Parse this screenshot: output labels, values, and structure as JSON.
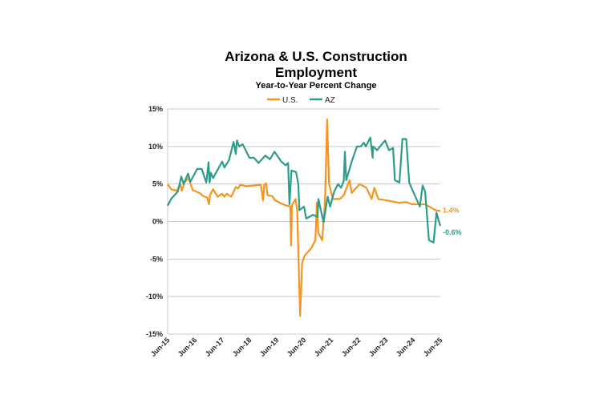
{
  "chart_data": {
    "type": "line",
    "title": [
      "Arizona & U.S. Construction",
      "Employment"
    ],
    "subtitle": "Year-to-Year Percent Change",
    "xlabel": "",
    "ylabel": "",
    "x_unit": "months since Jun-15",
    "xlim": [
      0,
      120
    ],
    "ylim": [
      -15,
      15
    ],
    "y_ticks": [
      15,
      10,
      5,
      0,
      -5,
      -10,
      -15
    ],
    "y_tick_labels": [
      "15%",
      "10%",
      "5%",
      "0%",
      "-5%",
      "-10%",
      "-15%"
    ],
    "x_ticks": [
      0,
      12,
      24,
      36,
      48,
      60,
      72,
      84,
      96,
      108,
      120
    ],
    "x_tick_labels": [
      "Jun-15",
      "Jun-16",
      "Jun-17",
      "Jun-18",
      "Jun-19",
      "Jun-20",
      "Jun-21",
      "Jun-22",
      "Jun-23",
      "Jun-24",
      "Jun-25"
    ],
    "grid": "horizontal",
    "legend_position": "top",
    "series": [
      {
        "name": "U.S.",
        "color": "#F7941D",
        "end_label": "1.4%",
        "points": [
          [
            0,
            5.0
          ],
          [
            1.5,
            4.3
          ],
          [
            4,
            4.1
          ],
          [
            5.6,
            5.0
          ],
          [
            6.2,
            4.1
          ],
          [
            7.4,
            5.2
          ],
          [
            9.2,
            5.8
          ],
          [
            11,
            4.2
          ],
          [
            14,
            3.8
          ],
          [
            15.6,
            3.4
          ],
          [
            17.4,
            3.2
          ],
          [
            18.2,
            2.3
          ],
          [
            18.6,
            3.5
          ],
          [
            20,
            4.3
          ],
          [
            22,
            3.3
          ],
          [
            24,
            3.7
          ],
          [
            25,
            3.3
          ],
          [
            26,
            3.7
          ],
          [
            28,
            3.3
          ],
          [
            30,
            4.6
          ],
          [
            31,
            4.4
          ],
          [
            32,
            4.9
          ],
          [
            34.5,
            4.7
          ],
          [
            38,
            4.8
          ],
          [
            41,
            4.9
          ],
          [
            42,
            2.8
          ],
          [
            42.5,
            4.9
          ],
          [
            43.3,
            5.1
          ],
          [
            44,
            3.5
          ],
          [
            46,
            3.4
          ],
          [
            47.4,
            2.8
          ],
          [
            51.5,
            2.2
          ],
          [
            54,
            2.0
          ],
          [
            54.3,
            -3.2
          ],
          [
            54.7,
            2.2
          ],
          [
            56.3,
            3.0
          ],
          [
            57,
            1.5
          ],
          [
            58.3,
            -12.6
          ],
          [
            59.2,
            -5.5
          ],
          [
            60.4,
            -4.5
          ],
          [
            63.3,
            -3.5
          ],
          [
            65,
            -2.5
          ],
          [
            65.7,
            2.5
          ],
          [
            66.3,
            -1.5
          ],
          [
            68,
            -2.5
          ],
          [
            69.2,
            2.5
          ],
          [
            70.2,
            13.6
          ],
          [
            71,
            5.0
          ],
          [
            72.7,
            3.0
          ],
          [
            75.7,
            3.0
          ],
          [
            77.5,
            3.5
          ],
          [
            80,
            5.5
          ],
          [
            81,
            3.8
          ],
          [
            84.5,
            5.0
          ],
          [
            87.5,
            4.5
          ],
          [
            89.8,
            3.0
          ],
          [
            91,
            4.5
          ],
          [
            92.7,
            3.0
          ],
          [
            96.9,
            2.8
          ],
          [
            101.6,
            2.5
          ],
          [
            105,
            2.6
          ],
          [
            107.5,
            2.3
          ],
          [
            113.3,
            2.3
          ],
          [
            118,
            1.5
          ],
          [
            120,
            1.4
          ]
        ]
      },
      {
        "name": "AZ",
        "color": "#2E9C8C",
        "end_label": "-0.6%",
        "points": [
          [
            0,
            2.1
          ],
          [
            1.5,
            3.0
          ],
          [
            4.5,
            4.0
          ],
          [
            6,
            6.0
          ],
          [
            7,
            5.0
          ],
          [
            9,
            6.4
          ],
          [
            10,
            5.3
          ],
          [
            13,
            7.0
          ],
          [
            15,
            7.0
          ],
          [
            17,
            5.2
          ],
          [
            18,
            7.9
          ],
          [
            18.5,
            5.2
          ],
          [
            19,
            6.5
          ],
          [
            20,
            5.8
          ],
          [
            24,
            8.0
          ],
          [
            25,
            7.2
          ],
          [
            27,
            8.2
          ],
          [
            29,
            10.6
          ],
          [
            30,
            9.0
          ],
          [
            30.5,
            10.8
          ],
          [
            31.5,
            10.0
          ],
          [
            33,
            10.3
          ],
          [
            36,
            8.5
          ],
          [
            38,
            8.5
          ],
          [
            40,
            7.8
          ],
          [
            43,
            8.8
          ],
          [
            45,
            8.3
          ],
          [
            47,
            9.3
          ],
          [
            50,
            8.0
          ],
          [
            52,
            7.5
          ],
          [
            53,
            7.8
          ],
          [
            53.6,
            2.3
          ],
          [
            54.5,
            6.8
          ],
          [
            56.5,
            6.6
          ],
          [
            57.5,
            5.0
          ],
          [
            58,
            1.5
          ],
          [
            60,
            2.0
          ],
          [
            61,
            0.4
          ],
          [
            64,
            0.9
          ],
          [
            66,
            0.6
          ],
          [
            66.3,
            3.0
          ],
          [
            68.6,
            -0.1
          ],
          [
            70.4,
            3.3
          ],
          [
            71.5,
            2.0
          ],
          [
            73.3,
            4.0
          ],
          [
            75,
            5.0
          ],
          [
            76.3,
            4.5
          ],
          [
            77.5,
            5.4
          ],
          [
            78,
            9.3
          ],
          [
            78.6,
            5.5
          ],
          [
            81,
            8.0
          ],
          [
            83.3,
            10.0
          ],
          [
            85,
            10.0
          ],
          [
            86.3,
            10.5
          ],
          [
            87.2,
            10.0
          ],
          [
            89.2,
            11.2
          ],
          [
            90.2,
            8.5
          ],
          [
            90.4,
            10.0
          ],
          [
            92.2,
            9.5
          ],
          [
            94,
            10.2
          ],
          [
            95.7,
            10.8
          ],
          [
            97.4,
            9.5
          ],
          [
            99.2,
            9.8
          ],
          [
            100,
            5.5
          ],
          [
            102,
            5.2
          ],
          [
            103.3,
            11.0
          ],
          [
            105,
            11.0
          ],
          [
            106.3,
            5.2
          ],
          [
            108,
            4.0
          ],
          [
            109.8,
            2.8
          ],
          [
            111,
            2.0
          ],
          [
            112.2,
            4.8
          ],
          [
            113.3,
            4.0
          ],
          [
            115,
            -2.5
          ],
          [
            117,
            -2.8
          ],
          [
            118.3,
            1.2
          ],
          [
            119.2,
            0.2
          ],
          [
            120,
            -0.6
          ]
        ]
      }
    ]
  }
}
